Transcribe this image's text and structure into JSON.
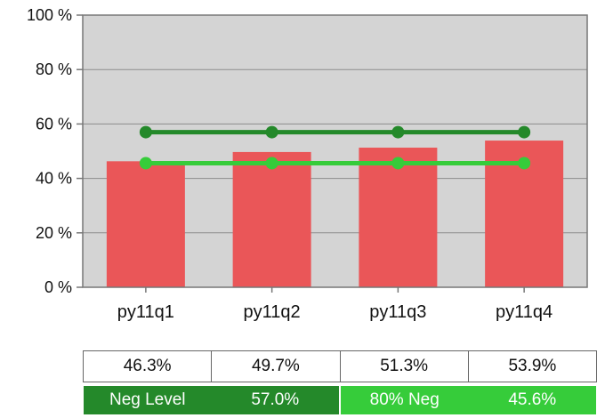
{
  "colors": {
    "plot_background": "#d4d4d4",
    "bar": "#ea5658",
    "neg_level_line": "#24892a",
    "neg80_line": "#36cc3a",
    "axis": "#777777",
    "grid": "#8c8c8c"
  },
  "chart_data": {
    "type": "bar",
    "categories": [
      "py11q1",
      "py11q2",
      "py11q3",
      "py11q4"
    ],
    "values": [
      46.3,
      49.7,
      51.3,
      53.9
    ],
    "ylim": [
      0,
      100
    ],
    "yticks": [
      0,
      20,
      40,
      60,
      80,
      100
    ],
    "ytick_labels": [
      "0 %",
      "20 %",
      "40 %",
      "60 %",
      "80 %",
      "100 %"
    ],
    "ref_lines": [
      {
        "name": "Neg Level",
        "value": 57.0
      },
      {
        "name": "80% Neg",
        "value": 45.6
      }
    ],
    "value_labels": [
      "46.3%",
      "49.7%",
      "51.3%",
      "53.9%"
    ],
    "grid": true
  },
  "legend": {
    "items": [
      {
        "label": "Neg Level",
        "value": "57.0%"
      },
      {
        "label": "80% Neg",
        "value": "45.6%"
      }
    ]
  }
}
